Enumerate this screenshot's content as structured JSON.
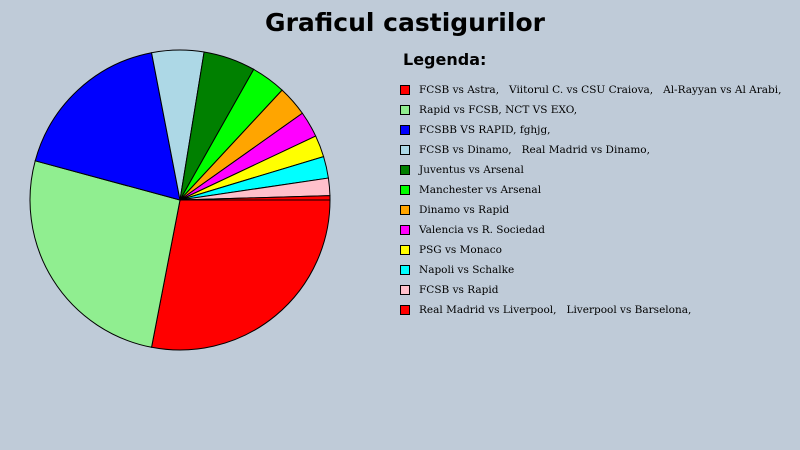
{
  "chart_data": {
    "type": "pie",
    "title": "Graficul castigurilor",
    "legend_title": "Legenda:",
    "legend_position": "right",
    "categories": [
      "FCSB vs Astra,   Viitorul C. vs CSU Craiova,   Al-Rayyan vs Al Arabi,",
      "Rapid vs FCSB, NCT VS EXO,",
      "FCSBB VS RAPID, fghjg,",
      "FCSB vs Dinamo,   Real Madrid vs Dinamo,",
      "Juventus vs Arsenal",
      "Manchester vs Arsenal",
      "Dinamo vs Rapid",
      "Valencia vs R. Sociedad",
      "PSG vs Monaco",
      "Napoli vs Schalke",
      "FCSB vs Rapid",
      "Real Madrid vs Liverpool,   Liverpool vs Barselona,"
    ],
    "values": [
      30,
      28,
      19,
      6,
      6,
      4,
      3.5,
      3,
      2.5,
      2.5,
      2,
      0.5
    ],
    "colors": [
      "#ff0000",
      "#90ee90",
      "#0000ff",
      "#add8e6",
      "#008000",
      "#00ff00",
      "#ffa500",
      "#ff00ff",
      "#ffff00",
      "#00ffff",
      "#ffc0cb",
      "#ff0000"
    ]
  }
}
